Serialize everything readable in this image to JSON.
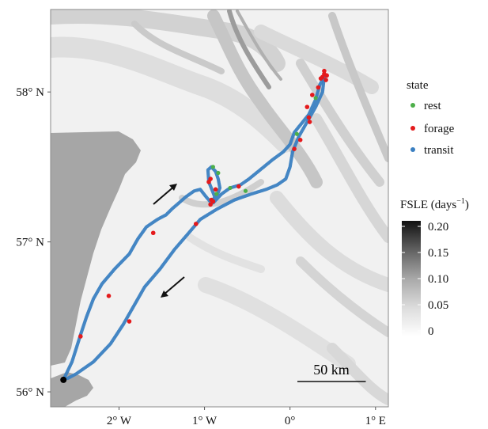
{
  "map": {
    "axes": {
      "x_ticks": [
        {
          "value": -2,
          "label": "2° W"
        },
        {
          "value": -1,
          "label": "1° W"
        },
        {
          "value": 0,
          "label": "0°"
        },
        {
          "value": 1,
          "label": "1° E"
        }
      ],
      "y_ticks": [
        {
          "value": 56,
          "label": "56° N"
        },
        {
          "value": 57,
          "label": "57° N"
        },
        {
          "value": 58,
          "label": "58° N"
        }
      ],
      "x_range": [
        -2.8,
        1.15
      ],
      "y_range": [
        55.9,
        58.55
      ]
    },
    "scale_bar": {
      "label": "50 km",
      "length_deg_lon": 0.8
    },
    "start_point": {
      "lon": -2.65,
      "lat": 56.08
    },
    "state_legend": {
      "title": "state",
      "items": [
        {
          "label": "rest",
          "color": "#4daf4a"
        },
        {
          "label": "forage",
          "color": "#e41a1c"
        },
        {
          "label": "transit",
          "color": "#3a7fc1"
        }
      ]
    },
    "fsle_legend": {
      "title_main": "FSLE (days",
      "title_sup": "−1",
      "title_end": ")",
      "ticks": [
        "0.20",
        "0.15",
        "0.10",
        "0.05",
        "0"
      ],
      "range": [
        0,
        0.2
      ]
    },
    "colors": {
      "land": "#a6a6a6",
      "sea_light": "#f1f1f1",
      "track": "#3a7fc1",
      "rest": "#4daf4a",
      "forage": "#e41a1c",
      "start": "#000000"
    },
    "track_out": [
      [
        -2.65,
        56.08
      ],
      [
        -2.55,
        56.2
      ],
      [
        -2.45,
        56.38
      ],
      [
        -2.38,
        56.5
      ],
      [
        -2.3,
        56.62
      ],
      [
        -2.2,
        56.72
      ],
      [
        -2.05,
        56.82
      ],
      [
        -1.88,
        56.92
      ],
      [
        -1.78,
        57.02
      ],
      [
        -1.68,
        57.1
      ],
      [
        -1.55,
        57.15
      ],
      [
        -1.45,
        57.18
      ],
      [
        -1.38,
        57.22
      ],
      [
        -1.3,
        57.26
      ],
      [
        -1.22,
        57.3
      ],
      [
        -1.12,
        57.34
      ],
      [
        -1.05,
        57.35
      ],
      [
        -0.98,
        57.3
      ],
      [
        -0.92,
        57.26
      ],
      [
        -0.88,
        57.3
      ],
      [
        -0.95,
        57.4
      ],
      [
        -0.96,
        57.48
      ],
      [
        -0.92,
        57.5
      ],
      [
        -0.87,
        57.47
      ],
      [
        -0.84,
        57.42
      ],
      [
        -0.82,
        57.36
      ],
      [
        -0.86,
        57.3
      ],
      [
        -0.9,
        57.26
      ],
      [
        -0.8,
        57.32
      ],
      [
        -0.7,
        57.36
      ],
      [
        -0.58,
        57.38
      ],
      [
        -0.48,
        57.42
      ],
      [
        -0.35,
        57.48
      ],
      [
        -0.2,
        57.55
      ],
      [
        -0.08,
        57.6
      ],
      [
        0.0,
        57.65
      ],
      [
        0.05,
        57.73
      ],
      [
        0.12,
        57.78
      ],
      [
        0.22,
        57.85
      ],
      [
        0.3,
        57.95
      ],
      [
        0.35,
        58.05
      ],
      [
        0.4,
        58.1
      ]
    ],
    "track_back": [
      [
        0.4,
        58.1
      ],
      [
        0.38,
        58.0
      ],
      [
        0.3,
        57.9
      ],
      [
        0.2,
        57.8
      ],
      [
        0.1,
        57.7
      ],
      [
        0.03,
        57.6
      ],
      [
        0.0,
        57.5
      ],
      [
        -0.05,
        57.42
      ],
      [
        -0.15,
        57.38
      ],
      [
        -0.28,
        57.35
      ],
      [
        -0.45,
        57.32
      ],
      [
        -0.65,
        57.28
      ],
      [
        -0.85,
        57.22
      ],
      [
        -1.05,
        57.15
      ],
      [
        -1.2,
        57.05
      ],
      [
        -1.35,
        56.95
      ],
      [
        -1.52,
        56.82
      ],
      [
        -1.7,
        56.7
      ],
      [
        -1.85,
        56.55
      ],
      [
        -1.95,
        56.45
      ],
      [
        -2.1,
        56.32
      ],
      [
        -2.3,
        56.2
      ],
      [
        -2.5,
        56.12
      ],
      [
        -2.6,
        56.09
      ]
    ],
    "forage_points": [
      [
        0.38,
        58.1
      ],
      [
        0.4,
        58.12
      ],
      [
        0.42,
        58.08
      ],
      [
        0.36,
        58.09
      ],
      [
        0.4,
        58.14
      ],
      [
        0.43,
        58.11
      ],
      [
        0.33,
        58.03
      ],
      [
        0.26,
        57.98
      ],
      [
        0.22,
        57.83
      ],
      [
        0.23,
        57.8
      ],
      [
        0.12,
        57.68
      ],
      [
        0.05,
        57.62
      ],
      [
        -0.92,
        57.28
      ],
      [
        -0.93,
        57.25
      ],
      [
        -0.9,
        57.27
      ],
      [
        -0.95,
        57.4
      ],
      [
        -0.93,
        57.42
      ],
      [
        -0.87,
        57.35
      ],
      [
        -1.6,
        57.06
      ],
      [
        -1.1,
        57.12
      ],
      [
        -2.12,
        56.64
      ],
      [
        -2.45,
        56.37
      ],
      [
        -1.88,
        56.47
      ],
      [
        -0.6,
        57.37
      ],
      [
        0.2,
        57.9
      ]
    ],
    "rest_points": [
      [
        -0.84,
        57.46
      ],
      [
        -0.86,
        57.32
      ],
      [
        -0.7,
        57.36
      ],
      [
        0.08,
        57.72
      ],
      [
        -0.9,
        57.5
      ],
      [
        0.3,
        57.96
      ],
      [
        -0.52,
        57.34
      ]
    ]
  }
}
